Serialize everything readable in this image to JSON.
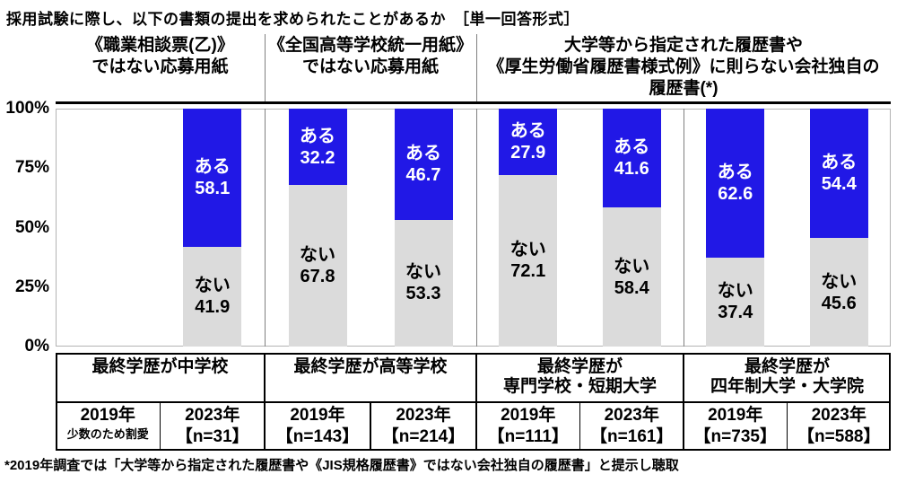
{
  "colors": {
    "aru": "#2118E6",
    "nai": "#DBDBDB",
    "aru_label": "#FFFFFF",
    "nai_label": "#000000",
    "divider": "#808080",
    "plot_border": "#B3B3B3",
    "table_border": "#000000"
  },
  "chart_data": {
    "type": "bar",
    "stacked": true,
    "orientation": "vertical",
    "unit": "%",
    "ylim": [
      0,
      100
    ],
    "grid": false,
    "title": "採用試験に際し、以下の書類の提出を求められたことがあるか　［単一回答形式］",
    "footnote": "*2019年調査では「大学等から指定された履歴書や《JIS規格履歴書》ではない会社独自の履歴書」と提示し聴取",
    "y_axis_ticks": [
      {
        "label": "100%",
        "value": 100
      },
      {
        "label": "75%",
        "value": 75
      },
      {
        "label": "50%",
        "value": 50
      },
      {
        "label": "25%",
        "value": 25
      },
      {
        "label": "0%",
        "value": 0
      }
    ],
    "series_labels": {
      "aru": "ある",
      "nai": "ない"
    },
    "column_headers": [
      {
        "lines": [
          "《職業相談票(乙)》",
          "ではない応募用紙"
        ],
        "group_span": [
          0,
          0
        ]
      },
      {
        "lines": [
          "《全国高等学校統一用紙》",
          "ではない応募用紙"
        ],
        "group_span": [
          1,
          1
        ]
      },
      {
        "lines": [
          "大学等から指定された履歴書や",
          "《厚生労働省履歴書様式例》に則らない会社独自の",
          "履歴書(*)"
        ],
        "group_span": [
          2,
          3
        ]
      }
    ],
    "groups": [
      {
        "footer_lines": [
          "最終学歴が中学校"
        ],
        "bars": [
          {
            "year": "2019年",
            "sub": "少数のため割愛",
            "omitted": true
          },
          {
            "year": "2023年",
            "sub": "【n=31】",
            "aru": 58.1,
            "nai": 41.9
          }
        ]
      },
      {
        "footer_lines": [
          "最終学歴が高等学校"
        ],
        "bars": [
          {
            "year": "2019年",
            "sub": "【n=143】",
            "aru": 32.2,
            "nai": 67.8
          },
          {
            "year": "2023年",
            "sub": "【n=214】",
            "aru": 46.7,
            "nai": 53.3
          }
        ]
      },
      {
        "footer_lines": [
          "最終学歴が",
          "専門学校・短期大学"
        ],
        "bars": [
          {
            "year": "2019年",
            "sub": "【n=111】",
            "aru": 27.9,
            "nai": 72.1
          },
          {
            "year": "2023年",
            "sub": "【n=161】",
            "aru": 41.6,
            "nai": 58.4
          }
        ]
      },
      {
        "footer_lines": [
          "最終学歴が",
          "四年制大学・大学院"
        ],
        "bars": [
          {
            "year": "2019年",
            "sub": "【n=735】",
            "aru": 62.6,
            "nai": 37.4
          },
          {
            "year": "2023年",
            "sub": "【n=588】",
            "aru": 54.4,
            "nai": 45.6
          }
        ]
      }
    ]
  }
}
